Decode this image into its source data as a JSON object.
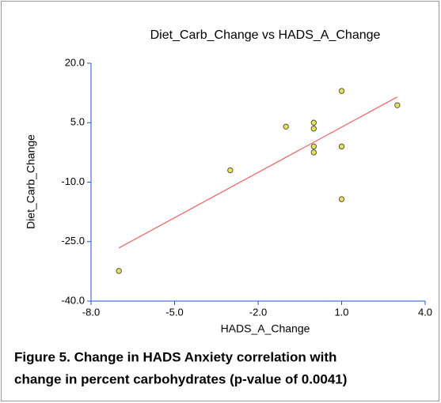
{
  "chart_data": {
    "type": "scatter",
    "title": "Diet_Carb_Change vs HADS_A_Change",
    "x_label": "HADS_A_Change",
    "y_label": "Diet_Carb_Change",
    "x": [
      -7,
      -3,
      -1,
      0,
      0,
      0,
      0,
      1,
      1,
      1,
      3
    ],
    "values": [
      -32.4,
      -7,
      4,
      5,
      3.5,
      -1,
      -2.5,
      13,
      -1,
      -14.3,
      9.4
    ],
    "color": "#e6e64c",
    "fit": {
      "x": [
        -7,
        3
      ],
      "y": [
        -26.6,
        11.5
      ],
      "color": "#e8696b"
    },
    "xlim": [
      -8,
      4
    ],
    "xticks": [
      {
        "value": -8,
        "label": "-8.0"
      },
      {
        "value": -5,
        "label": "-5.0"
      },
      {
        "value": -2,
        "label": "-2.0"
      },
      {
        "value": 1,
        "label": "1.0"
      },
      {
        "value": 4,
        "label": "4.0"
      }
    ],
    "ylim": [
      -40,
      20
    ],
    "yticks": [
      {
        "value": 20,
        "label": "20.0"
      },
      {
        "value": 5,
        "label": "5.0"
      },
      {
        "value": -10,
        "label": "-10.0"
      },
      {
        "value": -25,
        "label": "-25.0"
      },
      {
        "value": -40,
        "label": "-40.0"
      }
    ],
    "caption": [
      "Figure 5. Change in HADS Anxiety correlation with",
      "change in percent carbohydrates (p-value of 0.0041)"
    ]
  }
}
